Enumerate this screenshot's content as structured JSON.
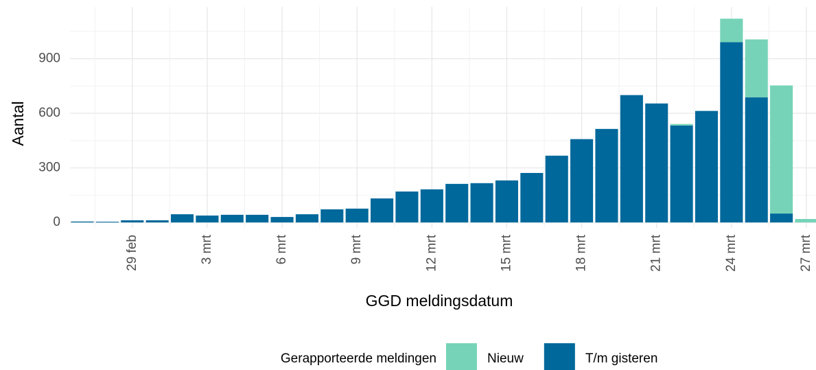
{
  "chart_data": {
    "type": "stacked-bar",
    "x_label": "GGD meldingsdatum",
    "y_label": "Aantal",
    "legend_title": "Gerapporteerde meldingen",
    "legend_position": "bottom",
    "grid": true,
    "categories": [
      null,
      null,
      "29 feb",
      null,
      null,
      "3 mrt",
      null,
      null,
      "6 mrt",
      null,
      null,
      "9 mrt",
      null,
      null,
      "12 mrt",
      null,
      null,
      "15 mrt",
      null,
      null,
      "18 mrt",
      null,
      null,
      "21 mrt",
      null,
      null,
      "24 mrt",
      null,
      null,
      "27 mrt"
    ],
    "series": [
      {
        "name": "Nieuw",
        "color": "#76d3b7",
        "values": [
          0,
          0,
          0,
          0,
          0,
          0,
          0,
          0,
          0,
          0,
          0,
          0,
          0,
          0,
          0,
          0,
          0,
          0,
          0,
          0,
          0,
          0,
          0,
          0,
          8,
          0,
          129,
          318,
          704,
          19
        ]
      },
      {
        "name": "T/m gisteren",
        "color": "#00689b",
        "values": [
          5,
          4,
          12,
          12,
          45,
          38,
          42,
          42,
          30,
          45,
          72,
          76,
          132,
          170,
          182,
          212,
          216,
          231,
          272,
          367,
          458,
          514,
          700,
          654,
          533,
          613,
          991,
          688,
          49,
          0
        ]
      }
    ],
    "ylim": [
      -30,
      1185
    ],
    "yticks": [
      0,
      300,
      600,
      900
    ]
  }
}
